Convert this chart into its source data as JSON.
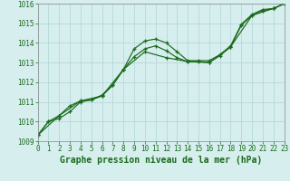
{
  "series1_x": [
    0,
    1,
    2,
    3,
    4,
    5,
    6,
    7,
    8,
    9,
    10,
    11,
    12,
    13,
    14,
    15,
    16,
    17,
    18,
    19,
    20,
    21,
    22,
    23
  ],
  "series1_y": [
    1009.3,
    1010.0,
    1010.15,
    1010.5,
    1011.0,
    1011.1,
    1011.35,
    1011.85,
    1012.65,
    1013.7,
    1014.1,
    1014.2,
    1014.0,
    1013.55,
    1013.1,
    1013.1,
    1013.1,
    1013.4,
    1013.85,
    1014.95,
    1015.45,
    1015.7,
    1015.75,
    1016.0
  ],
  "series2_x": [
    0,
    1,
    2,
    3,
    4,
    5,
    6,
    7,
    8,
    9,
    10,
    11,
    12,
    13,
    14,
    15,
    16,
    17,
    18,
    19,
    20,
    21,
    22,
    23
  ],
  "series2_y": [
    1009.3,
    1010.0,
    1010.3,
    1010.8,
    1011.05,
    1011.1,
    1011.3,
    1011.85,
    1012.65,
    1013.3,
    1013.7,
    1013.85,
    1013.6,
    1013.25,
    1013.05,
    1013.05,
    1013.0,
    1013.35,
    1013.8,
    1014.9,
    1015.4,
    1015.65,
    1015.75,
    1016.0
  ],
  "series3_x": [
    0,
    2,
    4,
    6,
    8,
    10,
    12,
    14,
    16,
    18,
    20,
    22,
    23
  ],
  "series3_y": [
    1009.3,
    1010.3,
    1011.05,
    1011.3,
    1012.65,
    1013.55,
    1013.25,
    1013.05,
    1013.0,
    1013.8,
    1015.4,
    1015.75,
    1016.0
  ],
  "line_color": "#1a6b1a",
  "marker": "+",
  "bg_color": "#d6eeee",
  "grid_color": "#b8d8d8",
  "xlabel": "Graphe pression niveau de la mer (hPa)",
  "ylim": [
    1009,
    1016
  ],
  "xlim": [
    0,
    23
  ],
  "yticks": [
    1009,
    1010,
    1011,
    1012,
    1013,
    1014,
    1015,
    1016
  ],
  "xticks": [
    0,
    1,
    2,
    3,
    4,
    5,
    6,
    7,
    8,
    9,
    10,
    11,
    12,
    13,
    14,
    15,
    16,
    17,
    18,
    19,
    20,
    21,
    22,
    23
  ],
  "tick_label_fontsize": 5.5,
  "xlabel_fontsize": 7.0
}
